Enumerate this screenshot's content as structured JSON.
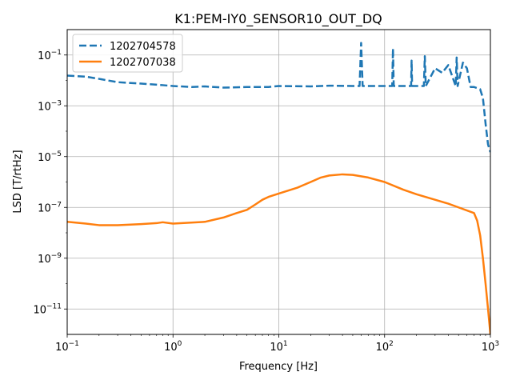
{
  "chart_data": {
    "type": "line",
    "title": "K1:PEM-IY0_SENSOR10_OUT_DQ",
    "xlabel": "Frequency [Hz]",
    "ylabel": "LSD [T/rtHz]",
    "xscale": "log",
    "yscale": "log",
    "xlim": [
      0.1,
      1000
    ],
    "ylim": [
      1e-12,
      1
    ],
    "grid": true,
    "legend": "top-left",
    "x_ticks": [
      {
        "value": 0.1,
        "base": "10",
        "exp": "−1"
      },
      {
        "value": 1,
        "base": "10",
        "exp": "0"
      },
      {
        "value": 10,
        "base": "10",
        "exp": "1"
      },
      {
        "value": 100,
        "base": "10",
        "exp": "2"
      },
      {
        "value": 1000,
        "base": "10",
        "exp": "3"
      }
    ],
    "y_ticks": [
      {
        "value": 1e-11,
        "base": "10",
        "exp": "−11"
      },
      {
        "value": 1e-09,
        "base": "10",
        "exp": "−9"
      },
      {
        "value": 1e-07,
        "base": "10",
        "exp": "−7"
      },
      {
        "value": 1e-05,
        "base": "10",
        "exp": "−5"
      },
      {
        "value": 0.001,
        "base": "10",
        "exp": "−3"
      },
      {
        "value": 0.1,
        "base": "10",
        "exp": "−1"
      }
    ],
    "series": [
      {
        "name": "1202704578",
        "color": "#1f77b4",
        "style": "dashed",
        "x": [
          0.1,
          0.15,
          0.2,
          0.3,
          0.5,
          0.8,
          1,
          1.5,
          2,
          3,
          5,
          8,
          10,
          20,
          30,
          50,
          58,
          60,
          62,
          100,
          118,
          120,
          122,
          170,
          178,
          180,
          182,
          200,
          235,
          240,
          245,
          300,
          350,
          400,
          470,
          480,
          490,
          550,
          600,
          650,
          700,
          800,
          850,
          900,
          950,
          1000
        ],
        "y": [
          0.0155,
          0.014,
          0.0115,
          0.0085,
          0.0075,
          0.0065,
          0.006,
          0.0055,
          0.0058,
          0.0052,
          0.0055,
          0.0055,
          0.006,
          0.0058,
          0.0062,
          0.006,
          0.006,
          0.3,
          0.006,
          0.006,
          0.006,
          0.18,
          0.006,
          0.006,
          0.006,
          0.06,
          0.006,
          0.006,
          0.006,
          0.09,
          0.006,
          0.03,
          0.02,
          0.04,
          0.006,
          0.08,
          0.006,
          0.05,
          0.03,
          0.0055,
          0.0055,
          0.0045,
          0.002,
          0.0002,
          3e-05,
          1.5e-05
        ]
      },
      {
        "name": "1202707038",
        "color": "#ff7f0e",
        "style": "solid",
        "x": [
          0.1,
          0.15,
          0.2,
          0.3,
          0.5,
          0.7,
          0.8,
          1,
          2,
          3,
          4,
          5,
          6,
          7,
          8,
          10,
          15,
          20,
          25,
          30,
          40,
          50,
          70,
          100,
          150,
          200,
          300,
          400,
          500,
          700,
          750,
          800,
          850,
          900,
          950,
          1000
        ],
        "y": [
          2.7e-08,
          2.3e-08,
          2e-08,
          2e-08,
          2.2e-08,
          2.4e-08,
          2.6e-08,
          2.3e-08,
          2.7e-08,
          4e-08,
          6e-08,
          8e-08,
          1.3e-07,
          2e-07,
          2.6e-07,
          3.5e-07,
          6e-07,
          1e-06,
          1.5e-06,
          1.8e-06,
          2e-06,
          1.9e-06,
          1.5e-06,
          1e-06,
          5e-07,
          3.3e-07,
          2e-07,
          1.4e-07,
          1e-07,
          6e-08,
          3e-08,
          8e-09,
          1e-09,
          1e-10,
          1e-11,
          1e-12
        ]
      }
    ]
  }
}
